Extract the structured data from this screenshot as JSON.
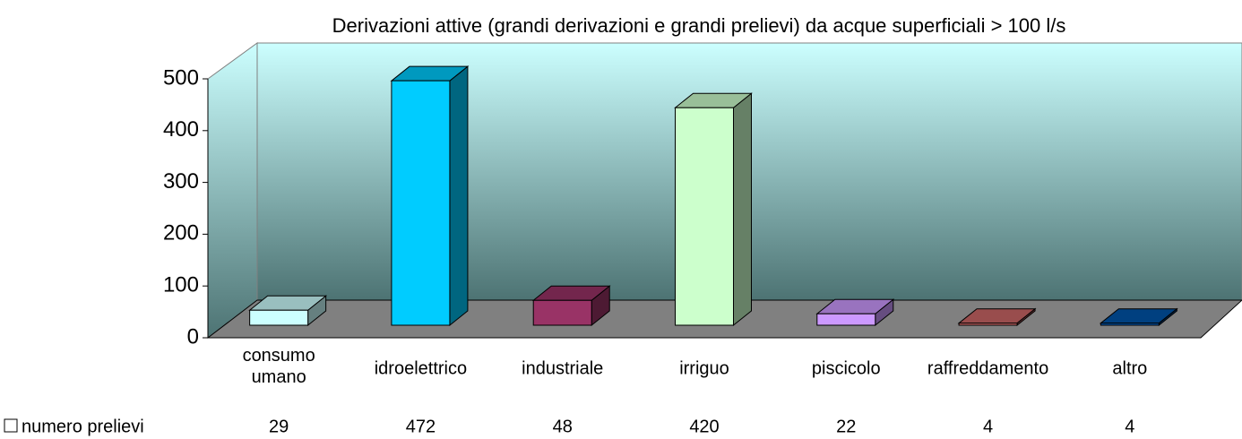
{
  "chart_data": {
    "type": "bar3d",
    "title": "Derivazioni attive (grandi derivazioni e grandi prelievi) da acque superficiali > 100 l/s",
    "categories": [
      "consumo umano",
      "idroelettrico",
      "industriale",
      "irriguo",
      "piscicolo",
      "raffreddamento",
      "altro"
    ],
    "series": [
      {
        "name": "numero prelievi",
        "values": [
          29,
          472,
          48,
          420,
          22,
          4,
          4
        ]
      }
    ],
    "colors": [
      "#ccffff",
      "#00ccff",
      "#993366",
      "#ccffcc",
      "#cc99ff",
      "#cc6666",
      "#0055aa"
    ],
    "ylim": [
      0,
      500
    ],
    "yticks": [
      0,
      100,
      200,
      300,
      400,
      500
    ]
  }
}
